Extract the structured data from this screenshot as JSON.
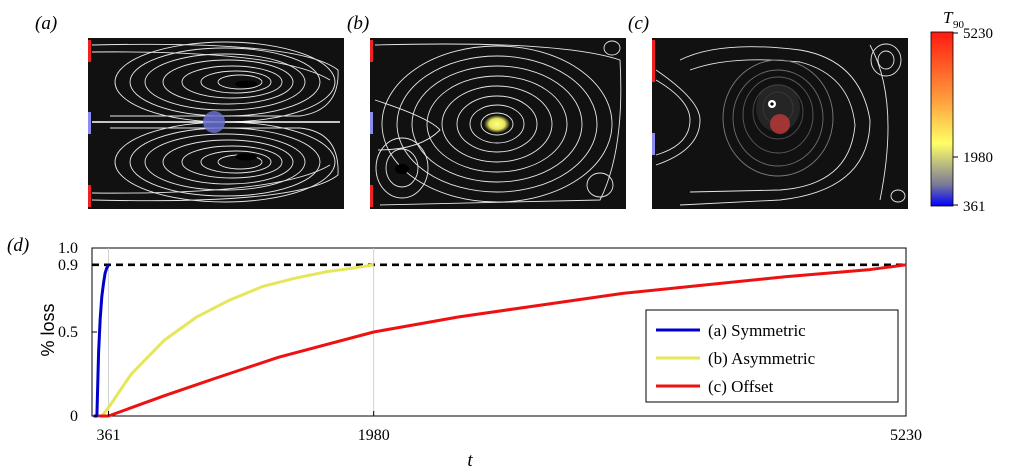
{
  "panels": [
    {
      "label": "(a)"
    },
    {
      "label": "(b)"
    },
    {
      "label": "(c)"
    }
  ],
  "colorbar": {
    "title_main": "T",
    "title_sub": "90",
    "ticks": [
      "5230",
      "1980",
      "361"
    ],
    "colors": [
      "#0000ff",
      "#777799",
      "#ffff66",
      "#ff9a3c",
      "#ff1a10"
    ]
  },
  "chart_data": {
    "type": "line",
    "panel_label": "(d)",
    "xlabel": "t",
    "ylabel": "% loss",
    "xlim": [
      260,
      5230
    ],
    "ylim": [
      0,
      1.0
    ],
    "xticks": [
      "361",
      "1980",
      "5230"
    ],
    "xtick_values": [
      361,
      1980,
      5230
    ],
    "yticks": [
      "0",
      "0.5",
      "0.9",
      "1.0"
    ],
    "ytick_values": [
      0,
      0.5,
      0.9,
      1.0
    ],
    "threshold": 0.9,
    "grid": "vertical lines at x ticks",
    "legend_position": "right",
    "series": [
      {
        "name": "(a) Symmetric",
        "color": "#0000cc",
        "x": [
          270,
          280,
          290,
          300,
          310,
          320,
          330,
          340,
          350,
          361
        ],
        "y": [
          0,
          0.0,
          0.0,
          0.38,
          0.58,
          0.71,
          0.79,
          0.85,
          0.88,
          0.9
        ]
      },
      {
        "name": "(b) Asymmetric",
        "color": "#e6e65a",
        "x": [
          320,
          361,
          500,
          700,
          900,
          1100,
          1300,
          1500,
          1700,
          1850,
          1980
        ],
        "y": [
          0,
          0.05,
          0.25,
          0.45,
          0.59,
          0.69,
          0.77,
          0.82,
          0.86,
          0.88,
          0.9
        ]
      },
      {
        "name": "(c) Offset",
        "color": "#ee1111",
        "x": [
          300,
          361,
          700,
          1000,
          1400,
          1980,
          2500,
          3000,
          3500,
          4000,
          4500,
          5000,
          5230
        ],
        "y": [
          0,
          0.0,
          0.12,
          0.22,
          0.35,
          0.5,
          0.59,
          0.66,
          0.73,
          0.78,
          0.83,
          0.87,
          0.9
        ]
      }
    ]
  }
}
